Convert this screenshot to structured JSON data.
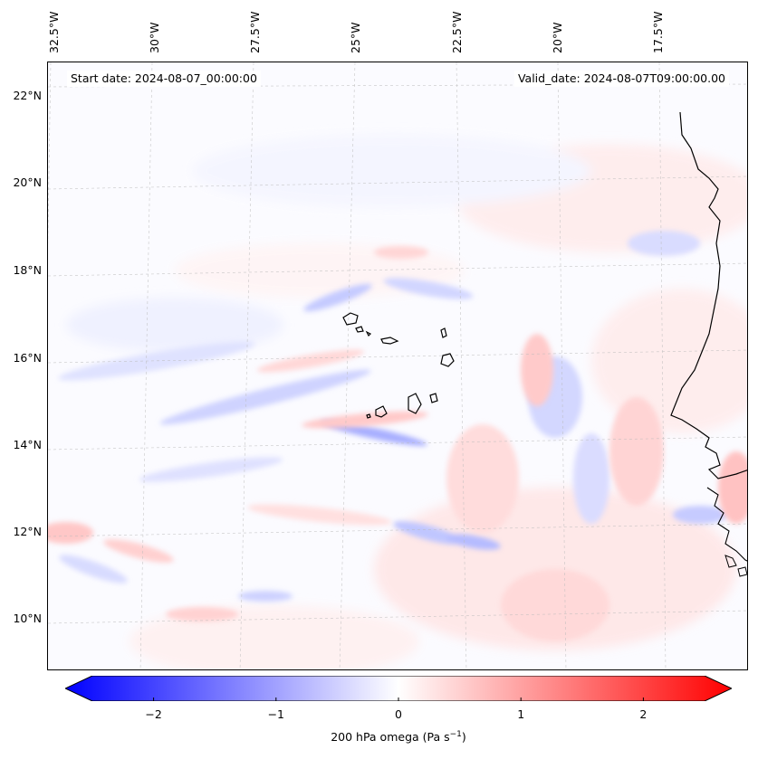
{
  "map": {
    "start_date": "Start date: 2024-08-07_00:00:00",
    "valid_date": "Valid_date: 2024-08-07T09:00:00.00",
    "lon_labels": [
      "32.5°W",
      "30°W",
      "27.5°W",
      "25°W",
      "22.5°W",
      "20°W",
      "17.5°W"
    ],
    "lat_labels": [
      "22°N",
      "20°N",
      "18°N",
      "16°N",
      "14°N",
      "12°N",
      "10°N"
    ],
    "field": "200 hPa omega",
    "colors": {
      "negative": "#0000ff",
      "neutral": "#ffffff",
      "positive": "#ff0000",
      "coast": "#000000"
    }
  },
  "colorbar": {
    "ticks": [
      "−2",
      "−1",
      "0",
      "1",
      "2"
    ],
    "tick_values": [
      -2,
      -1,
      0,
      1,
      2
    ],
    "range": [
      -2.5,
      2.5
    ],
    "label_main": "200 hPa omega (Pa s",
    "label_sup": "−1",
    "label_end": ")"
  }
}
